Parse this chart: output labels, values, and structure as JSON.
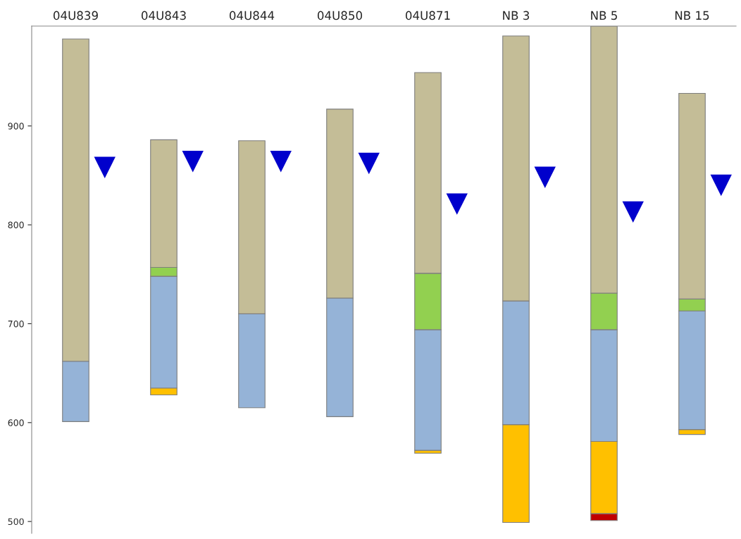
{
  "chart_data": {
    "type": "bar",
    "categories": [
      "04U839",
      "04U843",
      "04U844",
      "04U850",
      "04U871",
      "NB 3",
      "NB 5",
      "NB 15"
    ],
    "ylim": [
      488,
      1001
    ],
    "yticks": [
      500,
      600,
      700,
      800,
      900
    ],
    "series": [
      {
        "color": "#c00000",
        "base": [
          null,
          null,
          null,
          null,
          null,
          null,
          501,
          null
        ],
        "values": [
          null,
          null,
          null,
          null,
          null,
          null,
          7,
          null
        ]
      },
      {
        "color": "#ffc000",
        "base": [
          null,
          628,
          null,
          null,
          569,
          499,
          508,
          588
        ],
        "values": [
          null,
          7,
          null,
          null,
          3,
          99,
          73,
          5
        ]
      },
      {
        "color": "#95b3d7",
        "base": [
          601,
          635,
          615,
          606,
          572,
          598,
          581,
          593
        ],
        "values": [
          61,
          113,
          95,
          120,
          122,
          125,
          113,
          120
        ]
      },
      {
        "color": "#92d050",
        "base": [
          null,
          748,
          null,
          null,
          694,
          null,
          694,
          713
        ],
        "values": [
          null,
          9,
          null,
          null,
          57,
          null,
          37,
          12
        ]
      },
      {
        "color": "#c4bd97",
        "base": [
          662,
          757,
          710,
          726,
          751,
          723,
          731,
          725
        ],
        "values": [
          326,
          129,
          175,
          191,
          203,
          268,
          270,
          208
        ]
      },
      {
        "type": "scatter",
        "marker": "triangle",
        "color": "#0000cc",
        "values": [
          858,
          864,
          864,
          862,
          821,
          848,
          813,
          840
        ]
      }
    ]
  }
}
